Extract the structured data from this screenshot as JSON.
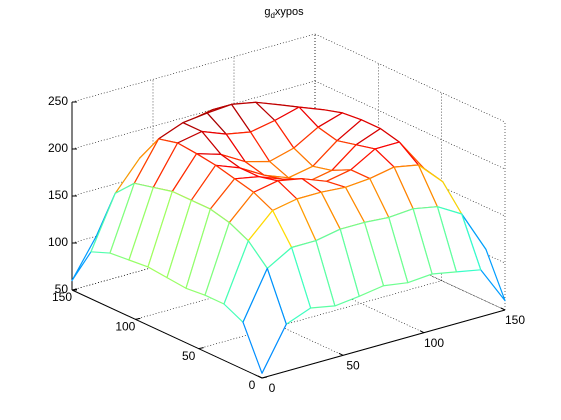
{
  "chart_data": {
    "type": "mesh",
    "title": {
      "base": "g",
      "subscript": "d",
      "rest": "xypos"
    },
    "x": [
      0,
      15,
      30,
      45,
      60,
      75,
      90,
      105,
      120,
      135,
      150
    ],
    "y": [
      0,
      15,
      30,
      45,
      60,
      75,
      90,
      105,
      120,
      135,
      150
    ],
    "z": [
      [
        55,
        100,
        110,
        105,
        108,
        112,
        108,
        110,
        105,
        100,
        60
      ],
      [
        100,
        150,
        165,
        165,
        170,
        170,
        168,
        170,
        165,
        150,
        105
      ],
      [
        110,
        170,
        195,
        200,
        200,
        198,
        200,
        205,
        200,
        175,
        110
      ],
      [
        110,
        180,
        205,
        210,
        205,
        195,
        200,
        215,
        215,
        180,
        112
      ],
      [
        108,
        185,
        210,
        205,
        195,
        185,
        190,
        210,
        220,
        185,
        110
      ],
      [
        110,
        185,
        215,
        205,
        190,
        180,
        185,
        205,
        220,
        185,
        108
      ],
      [
        112,
        185,
        218,
        210,
        195,
        188,
        195,
        210,
        218,
        183,
        110
      ],
      [
        110,
        180,
        220,
        225,
        215,
        210,
        215,
        222,
        212,
        178,
        108
      ],
      [
        108,
        175,
        215,
        225,
        228,
        230,
        225,
        215,
        200,
        170,
        105
      ],
      [
        100,
        155,
        185,
        200,
        210,
        215,
        210,
        195,
        180,
        150,
        100
      ],
      [
        60,
        100,
        112,
        115,
        118,
        120,
        115,
        110,
        105,
        100,
        55
      ]
    ],
    "xlim": [
      0,
      150
    ],
    "xticks": [
      0,
      50,
      100,
      150
    ],
    "ylim": [
      0,
      150
    ],
    "yticks": [
      0,
      50,
      100,
      150
    ],
    "zlim": [
      50,
      250
    ],
    "zticks": [
      50,
      100,
      150,
      200,
      250
    ],
    "colormap": "jet",
    "grid": true
  }
}
